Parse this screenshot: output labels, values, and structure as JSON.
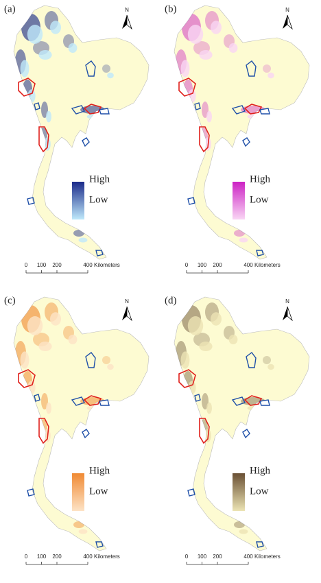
{
  "panels": [
    {
      "label": "(a)",
      "north": "N",
      "legend_high": "High",
      "legend_low": "Low",
      "high_color": "#1b2a8a",
      "low_color": "#bfe9fb",
      "scale": {
        "ticks": [
          0,
          100,
          200,
          400
        ],
        "unit": "Kilometers"
      }
    },
    {
      "label": "(b)",
      "north": "N",
      "legend_high": "High",
      "legend_low": "Low",
      "high_color": "#cc22c4",
      "low_color": "#f9d6f4",
      "scale": {
        "ticks": [
          0,
          100,
          200,
          400
        ],
        "unit": "Kilometers"
      }
    },
    {
      "label": "(c)",
      "north": "N",
      "legend_high": "High",
      "legend_low": "Low",
      "high_color": "#f08a34",
      "low_color": "#fde3c6",
      "scale": {
        "ticks": [
          0,
          100,
          200,
          400
        ],
        "unit": "Kilometers"
      }
    },
    {
      "label": "(d)",
      "north": "N",
      "legend_high": "High",
      "legend_low": "Low",
      "high_color": "#6a5034",
      "low_color": "#ece4b4",
      "scale": {
        "ticks": [
          0,
          100,
          200,
          400
        ],
        "unit": "Kilometers"
      }
    }
  ]
}
